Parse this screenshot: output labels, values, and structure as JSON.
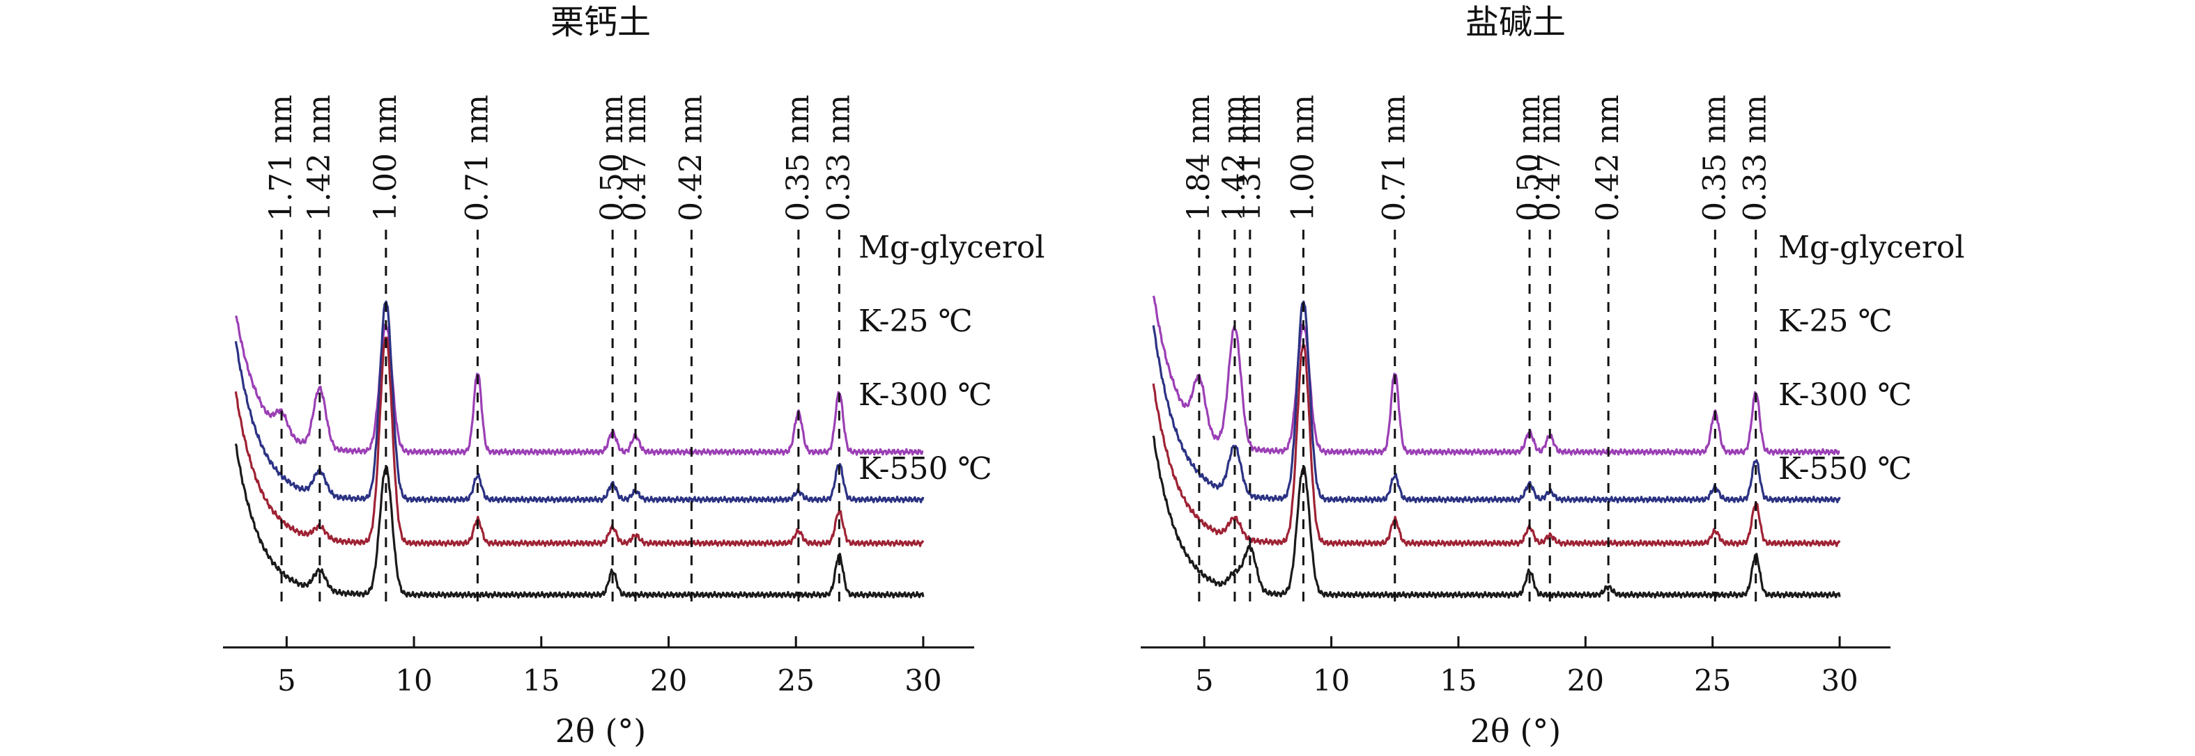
{
  "chart_data": [
    {
      "type": "line",
      "title": "栗钙土",
      "xlabel": "2θ (°)",
      "xlim": [
        2.5,
        32
      ],
      "ticks": [
        5,
        10,
        15,
        20,
        25,
        30
      ],
      "tick_labels": [
        "5",
        "10",
        "15",
        "20",
        "25",
        "30"
      ],
      "y_axis": "none",
      "grid": false,
      "series": [
        {
          "name": "Mg-glycerol",
          "color": "#9b3fb5",
          "baseline": 0.56,
          "peaks": [
            [
              4.8,
              0.05
            ],
            [
              6.3,
              0.15
            ],
            [
              8.9,
              0.32
            ],
            [
              12.5,
              0.2
            ],
            [
              17.8,
              0.05
            ],
            [
              18.7,
              0.04
            ],
            [
              25.1,
              0.1
            ],
            [
              26.7,
              0.15
            ]
          ],
          "start_rise": 0.35
        },
        {
          "name": "K-25 ℃",
          "color": "#2b3283",
          "baseline": 0.68,
          "peaks": [
            [
              6.3,
              0.06
            ],
            [
              8.9,
              0.5
            ],
            [
              12.5,
              0.06
            ],
            [
              17.8,
              0.04
            ],
            [
              18.7,
              0.02
            ],
            [
              25.1,
              0.02
            ],
            [
              26.7,
              0.09
            ]
          ],
          "start_rise": 0.4
        },
        {
          "name": "K-300 ℃",
          "color": "#9e2234",
          "baseline": 0.79,
          "peaks": [
            [
              6.3,
              0.03
            ],
            [
              8.9,
              0.52
            ],
            [
              12.5,
              0.06
            ],
            [
              17.8,
              0.04
            ],
            [
              18.7,
              0.02
            ],
            [
              25.1,
              0.03
            ],
            [
              26.7,
              0.08
            ]
          ],
          "start_rise": 0.38
        },
        {
          "name": "K-550 ℃",
          "color": "#1a1a1a",
          "baseline": 0.92,
          "peaks": [
            [
              6.3,
              0.05
            ],
            [
              8.9,
              0.32
            ],
            [
              17.8,
              0.06
            ],
            [
              26.7,
              0.1
            ]
          ],
          "start_rise": 0.38
        }
      ],
      "annotations": [
        {
          "label": "1.71 nm",
          "x": 4.8
        },
        {
          "label": "1.42 nm",
          "x": 6.3
        },
        {
          "label": "1.00 nm",
          "x": 8.9
        },
        {
          "label": "0.71 nm",
          "x": 12.5
        },
        {
          "label": "0.50 nm",
          "x": 17.8
        },
        {
          "label": "0.47 nm",
          "x": 18.7
        },
        {
          "label": "0.42 nm",
          "x": 20.9
        },
        {
          "label": "0.35 nm",
          "x": 25.1
        },
        {
          "label": "0.33 nm",
          "x": 26.7
        }
      ]
    },
    {
      "type": "line",
      "title": "盐碱土",
      "xlabel": "2θ (°)",
      "xlim": [
        2.5,
        32
      ],
      "ticks": [
        5,
        10,
        15,
        20,
        25,
        30
      ],
      "tick_labels": [
        "5",
        "10",
        "15",
        "20",
        "25",
        "30"
      ],
      "y_axis": "none",
      "grid": false,
      "series": [
        {
          "name": "Mg-glycerol",
          "color": "#9b3fb5",
          "baseline": 0.56,
          "peaks": [
            [
              4.8,
              0.13
            ],
            [
              6.2,
              0.3
            ],
            [
              8.9,
              0.32
            ],
            [
              12.5,
              0.2
            ],
            [
              17.8,
              0.05
            ],
            [
              18.6,
              0.04
            ],
            [
              25.1,
              0.1
            ],
            [
              26.7,
              0.15
            ]
          ],
          "start_rise": 0.4
        },
        {
          "name": "K-25 ℃",
          "color": "#2b3283",
          "baseline": 0.68,
          "peaks": [
            [
              6.2,
              0.12
            ],
            [
              8.9,
              0.5
            ],
            [
              12.5,
              0.06
            ],
            [
              17.8,
              0.04
            ],
            [
              18.6,
              0.02
            ],
            [
              25.1,
              0.03
            ],
            [
              26.7,
              0.1
            ]
          ],
          "start_rise": 0.44
        },
        {
          "name": "K-300 ℃",
          "color": "#9e2234",
          "baseline": 0.79,
          "peaks": [
            [
              6.2,
              0.05
            ],
            [
              8.9,
              0.5
            ],
            [
              12.5,
              0.06
            ],
            [
              17.8,
              0.04
            ],
            [
              18.6,
              0.02
            ],
            [
              25.1,
              0.03
            ],
            [
              26.7,
              0.1
            ]
          ],
          "start_rise": 0.4
        },
        {
          "name": "K-550 ℃",
          "color": "#1a1a1a",
          "baseline": 0.92,
          "peaks": [
            [
              6.2,
              0.04
            ],
            [
              6.8,
              0.11
            ],
            [
              8.9,
              0.32
            ],
            [
              17.8,
              0.06
            ],
            [
              20.9,
              0.02
            ],
            [
              26.7,
              0.1
            ]
          ],
          "start_rise": 0.4
        }
      ],
      "annotations": [
        {
          "label": "1.84 nm",
          "x": 4.8
        },
        {
          "label": "1.42 nm",
          "x": 6.2
        },
        {
          "label": "1.31 nm",
          "x": 6.8
        },
        {
          "label": "1.00 nm",
          "x": 8.9
        },
        {
          "label": "0.71 nm",
          "x": 12.5
        },
        {
          "label": "0.50 nm",
          "x": 17.8
        },
        {
          "label": "0.47 nm",
          "x": 18.6
        },
        {
          "label": "0.42 nm",
          "x": 20.9
        },
        {
          "label": "0.35 nm",
          "x": 25.1
        },
        {
          "label": "0.33 nm",
          "x": 26.7
        }
      ]
    }
  ]
}
